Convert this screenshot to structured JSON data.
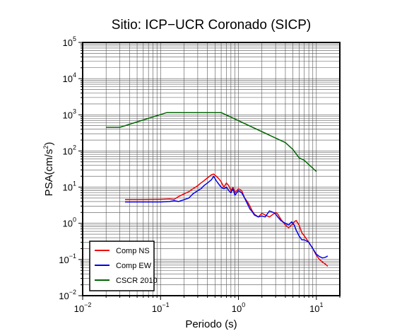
{
  "chart_data": {
    "type": "line",
    "title": "Sitio: ICP−UCR Coronado (SICP)",
    "xlabel": "Periodo (s)",
    "ylabel_base": "PSA(cm/s",
    "ylabel_exp": "2",
    "ylabel_close": ")",
    "xscale": "log",
    "yscale": "log",
    "xlim": [
      0.01,
      20
    ],
    "ylim": [
      0.01,
      100000
    ],
    "grid": true,
    "legend_position": "bottom-left",
    "x_ticks": [
      {
        "base": "10",
        "exp": "−2",
        "value": 0.01
      },
      {
        "base": "10",
        "exp": "−1",
        "value": 0.1
      },
      {
        "base": "10",
        "exp": "0",
        "value": 1
      },
      {
        "base": "10",
        "exp": "1",
        "value": 10
      }
    ],
    "y_ticks": [
      {
        "base": "10",
        "exp": "−2",
        "value": 0.01
      },
      {
        "base": "10",
        "exp": "−1",
        "value": 0.1
      },
      {
        "base": "10",
        "exp": "0",
        "value": 1
      },
      {
        "base": "10",
        "exp": "1",
        "value": 10
      },
      {
        "base": "10",
        "exp": "2",
        "value": 100
      },
      {
        "base": "10",
        "exp": "3",
        "value": 1000
      },
      {
        "base": "10",
        "exp": "4",
        "value": 10000
      },
      {
        "base": "10",
        "exp": "5",
        "value": 100000
      }
    ],
    "series": [
      {
        "name": "Comp NS",
        "color": "#ee0000",
        "points": [
          [
            0.035,
            4.5
          ],
          [
            0.06,
            4.5
          ],
          [
            0.1,
            4.6
          ],
          [
            0.13,
            4.7
          ],
          [
            0.15,
            4.6
          ],
          [
            0.17,
            5.5
          ],
          [
            0.2,
            6.5
          ],
          [
            0.23,
            7.5
          ],
          [
            0.26,
            9
          ],
          [
            0.3,
            11
          ],
          [
            0.33,
            13
          ],
          [
            0.36,
            15
          ],
          [
            0.4,
            18
          ],
          [
            0.45,
            22
          ],
          [
            0.48,
            23
          ],
          [
            0.52,
            20
          ],
          [
            0.56,
            17
          ],
          [
            0.6,
            14
          ],
          [
            0.65,
            10
          ],
          [
            0.7,
            13
          ],
          [
            0.75,
            11
          ],
          [
            0.8,
            8
          ],
          [
            0.85,
            10
          ],
          [
            0.9,
            7
          ],
          [
            1.0,
            9
          ],
          [
            1.1,
            8
          ],
          [
            1.2,
            5
          ],
          [
            1.3,
            4
          ],
          [
            1.4,
            3
          ],
          [
            1.5,
            2.2
          ],
          [
            1.6,
            1.8
          ],
          [
            1.8,
            1.5
          ],
          [
            2.0,
            1.9
          ],
          [
            2.2,
            1.7
          ],
          [
            2.5,
            1.5
          ],
          [
            2.8,
            1.8
          ],
          [
            3.0,
            2.0
          ],
          [
            3.2,
            1.8
          ],
          [
            3.5,
            1.3
          ],
          [
            4.0,
            0.9
          ],
          [
            4.4,
            0.75
          ],
          [
            4.8,
            0.9
          ],
          [
            5.2,
            1.1
          ],
          [
            5.5,
            1.2
          ],
          [
            6.0,
            0.9
          ],
          [
            6.5,
            0.55
          ],
          [
            7.0,
            0.45
          ],
          [
            8.0,
            0.3
          ],
          [
            9.0,
            0.2
          ],
          [
            10.0,
            0.13
          ],
          [
            11.0,
            0.1
          ],
          [
            12.0,
            0.085
          ],
          [
            13.0,
            0.075
          ],
          [
            14.0,
            0.065
          ]
        ]
      },
      {
        "name": "Comp EW",
        "color": "#0000ee",
        "points": [
          [
            0.035,
            3.9
          ],
          [
            0.06,
            3.9
          ],
          [
            0.1,
            3.9
          ],
          [
            0.13,
            4.0
          ],
          [
            0.15,
            4.2
          ],
          [
            0.17,
            4.0
          ],
          [
            0.2,
            4.5
          ],
          [
            0.23,
            5.0
          ],
          [
            0.26,
            6.5
          ],
          [
            0.3,
            8
          ],
          [
            0.33,
            9
          ],
          [
            0.36,
            11
          ],
          [
            0.4,
            13
          ],
          [
            0.45,
            16
          ],
          [
            0.48,
            20
          ],
          [
            0.52,
            15
          ],
          [
            0.56,
            12
          ],
          [
            0.6,
            10
          ],
          [
            0.65,
            9
          ],
          [
            0.7,
            10
          ],
          [
            0.75,
            8
          ],
          [
            0.8,
            7
          ],
          [
            0.85,
            9
          ],
          [
            0.9,
            6
          ],
          [
            1.0,
            8
          ],
          [
            1.1,
            7
          ],
          [
            1.2,
            5
          ],
          [
            1.3,
            3.5
          ],
          [
            1.4,
            2.5
          ],
          [
            1.5,
            2.1
          ],
          [
            1.6,
            1.7
          ],
          [
            1.8,
            1.5
          ],
          [
            2.0,
            1.6
          ],
          [
            2.2,
            1.5
          ],
          [
            2.5,
            2.2
          ],
          [
            2.8,
            2.0
          ],
          [
            3.0,
            1.8
          ],
          [
            3.2,
            1.5
          ],
          [
            3.5,
            1.2
          ],
          [
            4.0,
            1.0
          ],
          [
            4.4,
            0.9
          ],
          [
            4.8,
            1.1
          ],
          [
            5.2,
            0.9
          ],
          [
            5.5,
            0.65
          ],
          [
            6.0,
            0.45
          ],
          [
            6.5,
            0.35
          ],
          [
            7.0,
            0.35
          ],
          [
            8.0,
            0.3
          ],
          [
            9.0,
            0.2
          ],
          [
            10.0,
            0.14
          ],
          [
            11.0,
            0.12
          ],
          [
            12.0,
            0.11
          ],
          [
            13.0,
            0.115
          ],
          [
            14.0,
            0.125
          ]
        ]
      },
      {
        "name": "CSCR 2010",
        "color": "#006600",
        "points": [
          [
            0.02,
            450
          ],
          [
            0.03,
            450
          ],
          [
            0.12,
            1150
          ],
          [
            0.6,
            1150
          ],
          [
            4.0,
            170
          ],
          [
            5.0,
            110
          ],
          [
            6.0,
            65
          ],
          [
            7.0,
            55
          ],
          [
            10.0,
            27
          ]
        ]
      }
    ]
  }
}
